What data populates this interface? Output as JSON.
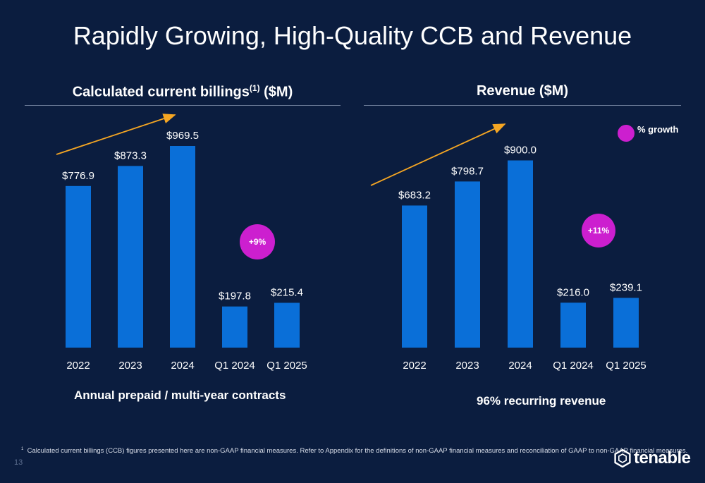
{
  "slide": {
    "title": "Rapidly Growing, High-Quality CCB and Revenue",
    "page_number": "13"
  },
  "left_panel": {
    "title_main": "Calculated current billings",
    "title_sup": "(1)",
    "title_tail": " ($M)",
    "note": "Annual prepaid / multi-year contracts"
  },
  "right_panel": {
    "title": "Revenue ($M)",
    "note": "96% recurring revenue",
    "legend_label": "% growth"
  },
  "footnote": {
    "marker": "1",
    "text": "Calculated current billings (CCB) figures presented here are non-GAAP financial measures. Refer to Appendix for the definitions of non-GAAP financial measures and reconciliation of GAAP to non-GAAP financial measures."
  },
  "logo": {
    "text": "tenable",
    "icon": "tenable-logo-icon"
  },
  "colors": {
    "background": "#0b1d3f",
    "bar": "#0a6fd8",
    "growth_bubble": "#cc1fcf",
    "trend_arrow": "#f5a623"
  },
  "chart_data": [
    {
      "type": "bar",
      "title": "Calculated current billings(1) ($M)",
      "categories": [
        "2022",
        "2023",
        "2024",
        "Q1 2024",
        "Q1 2025"
      ],
      "values": [
        776.9,
        873.3,
        969.5,
        197.8,
        215.4
      ],
      "value_labels": [
        "$776.9",
        "$873.3",
        "$969.5",
        "$197.8",
        "$215.4"
      ],
      "ylim": [
        0,
        1200
      ],
      "growth_label": "+9%",
      "grid": false
    },
    {
      "type": "bar",
      "title": "Revenue ($M)",
      "categories": [
        "2022",
        "2023",
        "2024",
        "Q1 2024",
        "Q1 2025"
      ],
      "values": [
        683.2,
        798.7,
        900.0,
        216.0,
        239.1
      ],
      "value_labels": [
        "$683.2",
        "$798.7",
        "$900.0",
        "$216.0",
        "$239.1"
      ],
      "ylim": [
        0,
        1200
      ],
      "growth_label": "+11%",
      "legend": "top-right",
      "grid": false
    }
  ]
}
